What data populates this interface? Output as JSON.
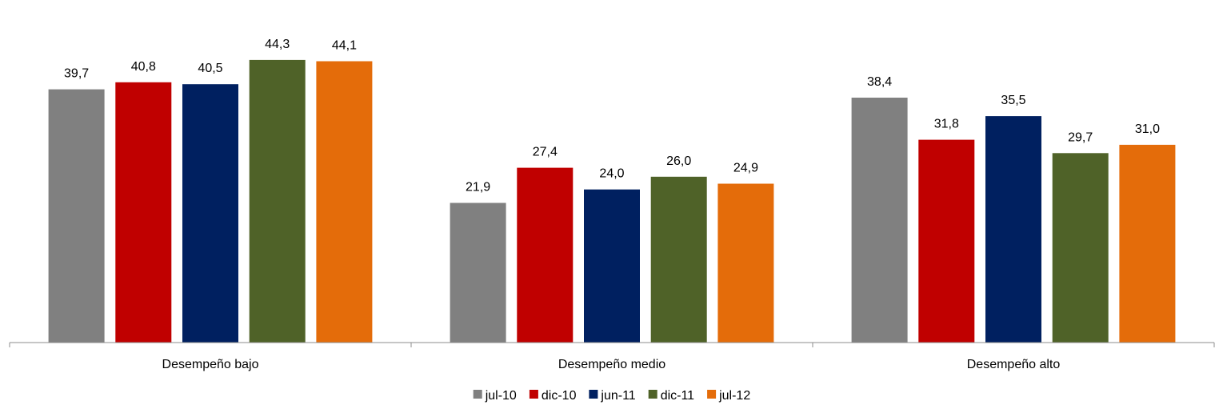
{
  "chart_data": {
    "type": "bar",
    "title": "",
    "xlabel": "",
    "ylabel": "",
    "ylim": [
      0,
      46
    ],
    "grid": false,
    "legend_position": "bottom",
    "categories": [
      "Desempeño bajo",
      "Desempeño medio",
      "Desempeño alto"
    ],
    "series": [
      {
        "name": "jul-10",
        "color": "#808080",
        "values": [
          39.7,
          21.9,
          38.4
        ],
        "labels": [
          "39,7",
          "21,9",
          "38,4"
        ]
      },
      {
        "name": "dic-10",
        "color": "#C00000",
        "values": [
          40.8,
          27.4,
          31.8
        ],
        "labels": [
          "40,8",
          "27,4",
          "31,8"
        ]
      },
      {
        "name": "jun-11",
        "color": "#002060",
        "values": [
          40.5,
          24.0,
          35.5
        ],
        "labels": [
          "40,5",
          "24,0",
          "35,5"
        ]
      },
      {
        "name": "dic-11",
        "color": "#4F6228",
        "values": [
          44.3,
          26.0,
          29.7
        ],
        "labels": [
          "44,3",
          "26,0",
          "29,7"
        ]
      },
      {
        "name": "jul-12",
        "color": "#E46C0A",
        "values": [
          44.1,
          24.9,
          31.0
        ],
        "labels": [
          "44,1",
          "24,9",
          "31,0"
        ]
      }
    ]
  }
}
